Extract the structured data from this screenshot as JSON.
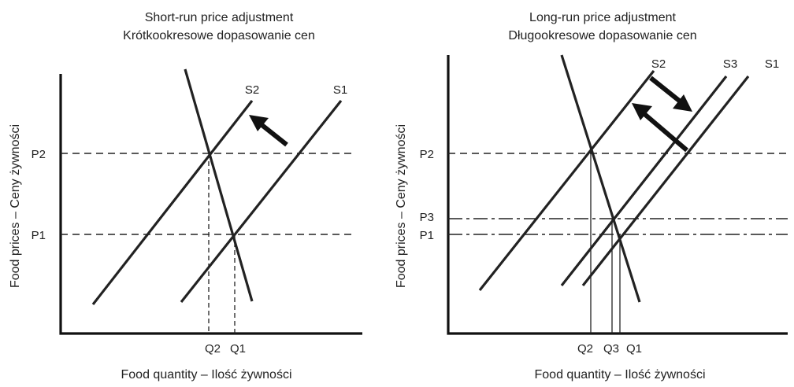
{
  "left_chart": {
    "title_line1": "Short-run price adjustment",
    "title_line2": "Krótkookresowe dopasowanie cen",
    "ylabel": "Food prices – Ceny żywności",
    "xlabel": "Food quantity – Ilość żywności",
    "price_labels": [
      "P2",
      "P1"
    ],
    "quantity_labels": [
      "Q2",
      "Q1"
    ],
    "supply_labels": [
      "S2",
      "S1"
    ]
  },
  "right_chart": {
    "title_line1": "Long-run price adjustment",
    "title_line2": "Długookresowe dopasowanie cen",
    "ylabel": "Food prices – Ceny żywności",
    "xlabel": "Food quantity – Ilość żywności",
    "price_labels": [
      "P2",
      "P3",
      "P1"
    ],
    "quantity_labels": [
      "Q2",
      "Q3",
      "Q1"
    ],
    "supply_labels": [
      "S2",
      "S3",
      "S1"
    ]
  }
}
